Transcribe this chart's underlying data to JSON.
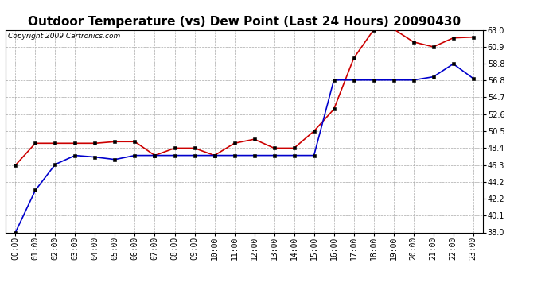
{
  "title": "Outdoor Temperature (vs) Dew Point (Last 24 Hours) 20090430",
  "copyright_text": "Copyright 2009 Cartronics.com",
  "x_labels": [
    "00:00",
    "01:00",
    "02:00",
    "03:00",
    "04:00",
    "05:00",
    "06:00",
    "07:00",
    "08:00",
    "09:00",
    "10:00",
    "11:00",
    "12:00",
    "13:00",
    "14:00",
    "15:00",
    "16:00",
    "17:00",
    "18:00",
    "19:00",
    "20:00",
    "21:00",
    "22:00",
    "23:00"
  ],
  "temp_data": [
    46.3,
    49.0,
    49.0,
    49.0,
    49.0,
    49.2,
    49.2,
    47.5,
    48.4,
    48.4,
    47.5,
    49.0,
    49.5,
    48.4,
    48.4,
    50.5,
    53.2,
    59.5,
    63.0,
    63.1,
    61.5,
    60.9,
    62.0,
    62.1
  ],
  "dew_data": [
    38.0,
    43.2,
    46.4,
    47.5,
    47.3,
    47.0,
    47.5,
    47.5,
    47.5,
    47.5,
    47.5,
    47.5,
    47.5,
    47.5,
    47.5,
    47.5,
    56.8,
    56.8,
    56.8,
    56.8,
    56.8,
    57.2,
    58.8,
    57.0
  ],
  "temp_color": "#cc0000",
  "dew_color": "#0000cc",
  "background_color": "#ffffff",
  "plot_bg_color": "#ffffff",
  "grid_color": "#aaaaaa",
  "ylim": [
    38.0,
    63.0
  ],
  "yticks": [
    38.0,
    40.1,
    42.2,
    44.2,
    46.3,
    48.4,
    50.5,
    52.6,
    54.7,
    56.8,
    58.8,
    60.9,
    63.0
  ],
  "title_fontsize": 11,
  "copyright_fontsize": 6.5,
  "tick_fontsize": 7,
  "marker": "s",
  "marker_size": 2.5,
  "linewidth": 1.2
}
